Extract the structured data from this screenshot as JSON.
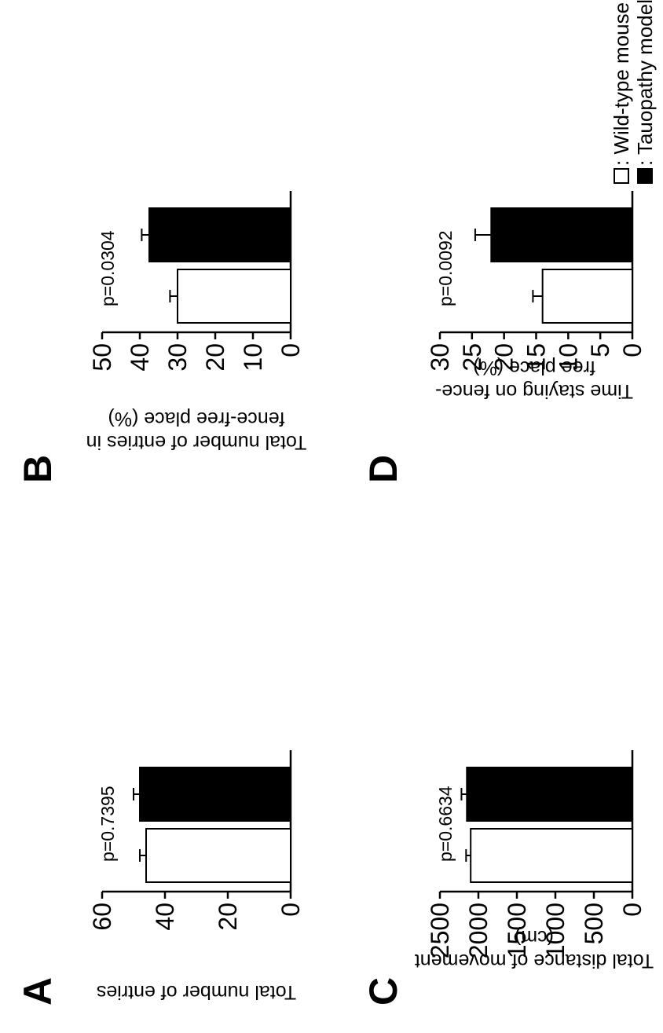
{
  "figure": {
    "legend": [
      {
        "label": ": Wild-type mouse",
        "fill": "#ffffff"
      },
      {
        "label": ": Tauopathy model mouse",
        "fill": "#000000"
      }
    ]
  },
  "chart_data": [
    {
      "panel": "A",
      "type": "bar",
      "categories": [
        "Wild-type mouse",
        "Tauopathy model mouse"
      ],
      "values": [
        46,
        48
      ],
      "errors": [
        2,
        2
      ],
      "ylabel": "Total number of entries",
      "ylim": [
        0,
        60
      ],
      "yticks": [
        "0",
        "20",
        "40",
        "60"
      ],
      "annotation": "p=0.7395"
    },
    {
      "panel": "B",
      "type": "bar",
      "categories": [
        "Wild-type mouse",
        "Tauopathy model mouse"
      ],
      "values": [
        30,
        37.5
      ],
      "errors": [
        2,
        2
      ],
      "ylabel": "Total number of entries in fence-free place (%)",
      "ylabel_lines": [
        "Total number of entries in",
        "fence-free place (%)"
      ],
      "ylim": [
        0,
        50
      ],
      "yticks": [
        "0",
        "10",
        "20",
        "30",
        "40",
        "50"
      ],
      "annotation": "p=0.0304"
    },
    {
      "panel": "C",
      "type": "bar",
      "categories": [
        "Wild-type mouse",
        "Tauopathy model mouse"
      ],
      "values": [
        2100,
        2150
      ],
      "errors": [
        60,
        70
      ],
      "ylabel": "Total distance of movement (cm)",
      "ylabel_lines": [
        "Total distance of movement",
        "(cm)"
      ],
      "ylim": [
        0,
        2500
      ],
      "yticks": [
        "0",
        "500",
        "1000",
        "1500",
        "2000",
        "2500"
      ],
      "annotation": "p=0.6634"
    },
    {
      "panel": "D",
      "type": "bar",
      "categories": [
        "Wild-type mouse",
        "Tauopathy model mouse"
      ],
      "values": [
        14,
        22
      ],
      "errors": [
        1.5,
        2.5
      ],
      "ylabel": "Time staying on fence-free place (%)",
      "ylabel_lines": [
        "Time staying on fence-",
        "free place (%)"
      ],
      "ylim": [
        0,
        30
      ],
      "yticks": [
        "0",
        "5",
        "10",
        "15",
        "20",
        "25",
        "30"
      ],
      "annotation": "p=0.0092"
    }
  ]
}
